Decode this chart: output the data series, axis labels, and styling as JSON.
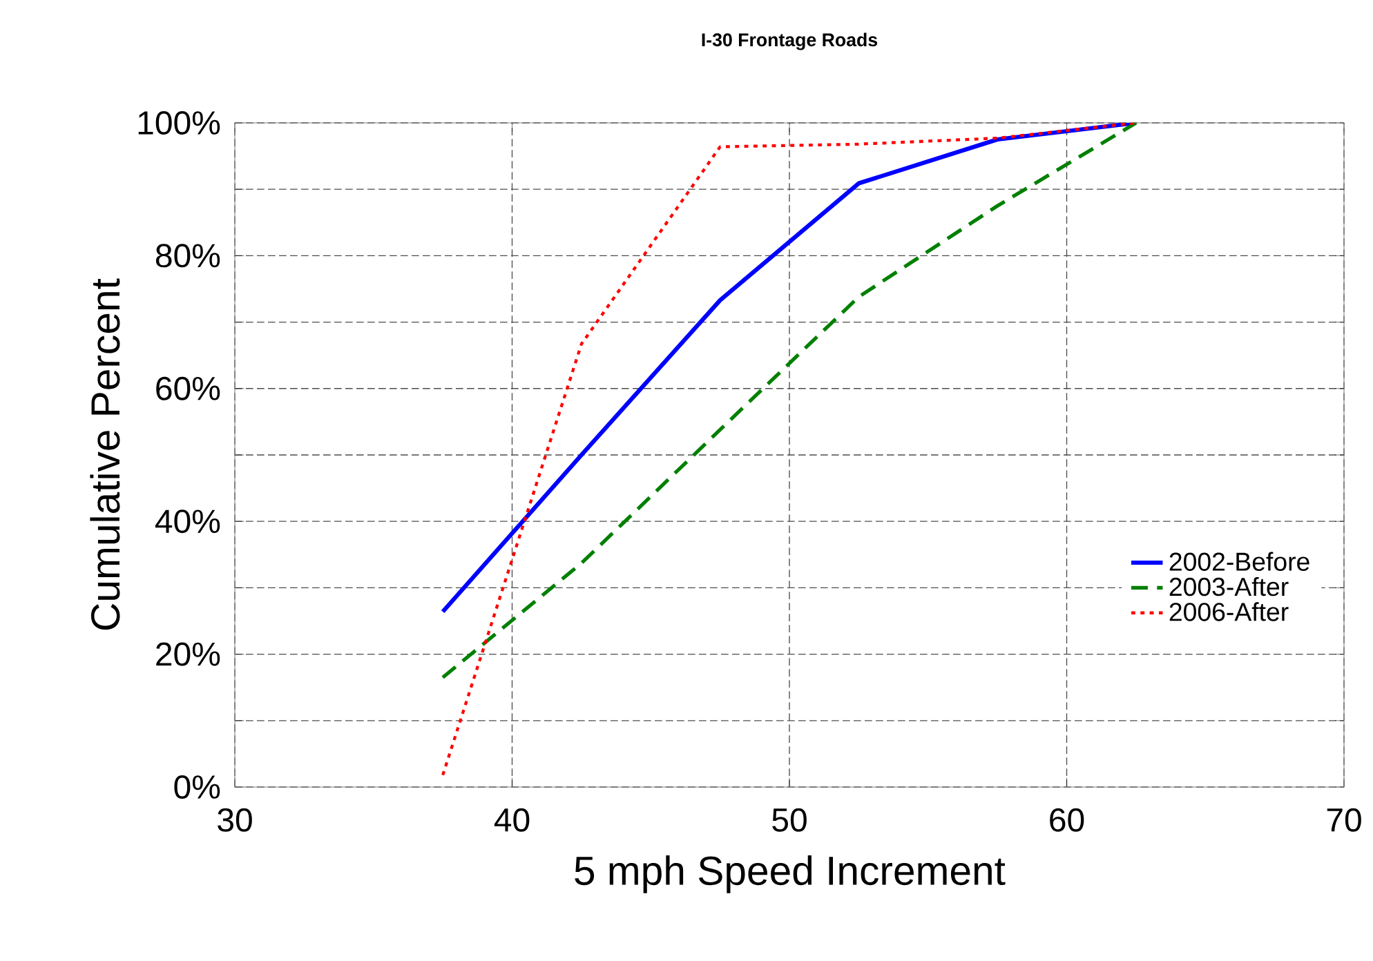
{
  "chart_data": {
    "type": "line",
    "title": "I-30 Frontage Roads",
    "xlabel": "5 mph Speed Increment",
    "ylabel": "Cumulative Percent",
    "x": [
      37.5,
      42.5,
      47.5,
      52.5,
      57.5,
      62.5
    ],
    "series": [
      {
        "name": "2002-Before",
        "color": "#0000ff",
        "line_style": "solid",
        "values": [
          26.4,
          50.0,
          73.3,
          90.9,
          97.5,
          100
        ]
      },
      {
        "name": "2003-After",
        "color": "#008000",
        "line_style": "dashed",
        "values": [
          16.5,
          33.7,
          53.8,
          73.8,
          87.5,
          100
        ]
      },
      {
        "name": "2006-After",
        "color": "#ff0000",
        "line_style": "dotted",
        "values": [
          1.8,
          66.7,
          96.4,
          96.8,
          97.7,
          100
        ]
      }
    ],
    "xlim": [
      30,
      70
    ],
    "xticks": [
      30,
      40,
      50,
      60,
      70
    ],
    "ylim": [
      0,
      100
    ],
    "yticks": [
      {
        "value": 0,
        "label": "0%"
      },
      {
        "value": 10,
        "label": null
      },
      {
        "value": 20,
        "label": "20%"
      },
      {
        "value": 30,
        "label": null
      },
      {
        "value": 40,
        "label": "40%"
      },
      {
        "value": 50,
        "label": null
      },
      {
        "value": 60,
        "label": "60%"
      },
      {
        "value": 70,
        "label": null
      },
      {
        "value": 80,
        "label": "80%"
      },
      {
        "value": 90,
        "label": null
      },
      {
        "value": 100,
        "label": "100%"
      }
    ],
    "grid": true,
    "legend": "right",
    "marker": "none"
  }
}
